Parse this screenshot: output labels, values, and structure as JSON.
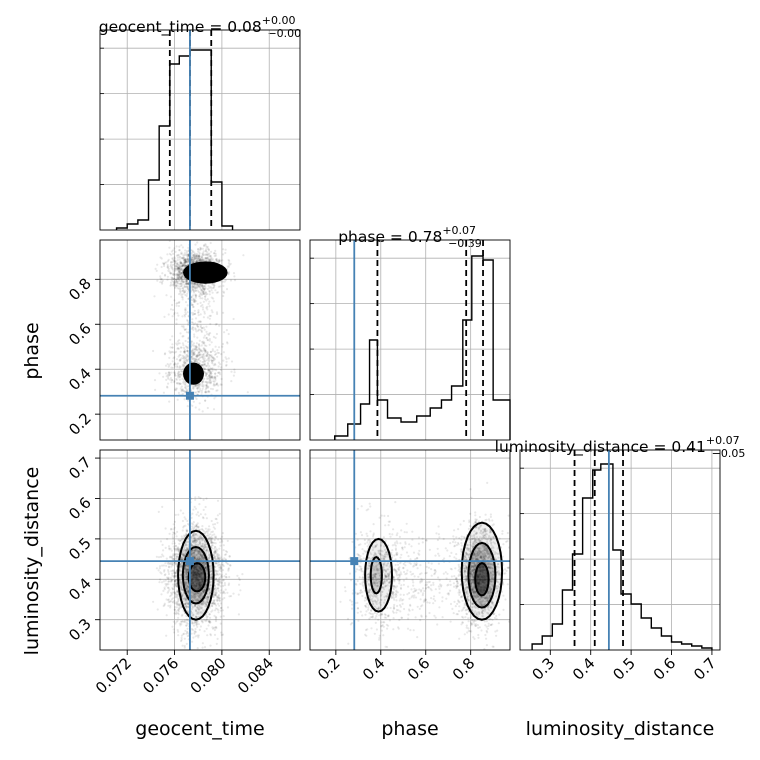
{
  "chart_data": {
    "type": "corner",
    "parameters": [
      "geocent_time",
      "phase",
      "luminosity_distance"
    ],
    "titles": {
      "geocent_time": {
        "param": "geocent_time",
        "median": "0.08",
        "plus": "+0.00",
        "minus": "−0.00"
      },
      "phase": {
        "param": "phase",
        "median": "0.78",
        "plus": "+0.07",
        "minus": "−0.39"
      },
      "luminosity_distance": {
        "param": "luminosity_distance",
        "median": "0.41",
        "plus": "+0.07",
        "minus": "−0.05"
      }
    },
    "ranges": {
      "geocent_time": [
        0.0697,
        0.0866
      ],
      "phase": [
        0.085,
        0.975
      ],
      "luminosity_distance": [
        0.225,
        0.72
      ]
    },
    "ticks": {
      "geocent_time": [
        "0.072",
        "0.076",
        "0.080",
        "0.084"
      ],
      "phase": [
        "0.2",
        "0.4",
        "0.6",
        "0.8"
      ],
      "luminosity_distance": [
        "0.3",
        "0.4",
        "0.5",
        "0.6",
        "0.7"
      ]
    },
    "tick_values": {
      "geocent_time": [
        0.072,
        0.076,
        0.08,
        0.084
      ],
      "phase": [
        0.2,
        0.4,
        0.6,
        0.8
      ],
      "luminosity_distance": [
        0.3,
        0.4,
        0.5,
        0.6,
        0.7
      ]
    },
    "truths": {
      "geocent_time": 0.0773,
      "phase": 0.282,
      "luminosity_distance": 0.445
    },
    "quantiles": {
      "geocent_time": [
        0.0756,
        0.0773,
        0.0791
      ],
      "phase": [
        0.385,
        0.78,
        0.855
      ],
      "luminosity_distance": [
        0.36,
        0.41,
        0.48
      ]
    },
    "histograms": {
      "geocent_time": {
        "edges": [
          0.0711,
          0.072,
          0.0729,
          0.0738,
          0.0747,
          0.0756,
          0.0764,
          0.0773,
          0.0782,
          0.0791,
          0.08,
          0.0809
        ],
        "values": [
          0.01,
          0.03,
          0.05,
          0.25,
          0.52,
          0.83,
          0.87,
          0.9,
          0.9,
          0.24,
          0.02
        ]
      },
      "phase": {
        "edges": [
          0.195,
          0.253,
          0.31,
          0.35,
          0.385,
          0.43,
          0.49,
          0.56,
          0.62,
          0.67,
          0.715,
          0.765,
          0.805,
          0.855,
          0.9,
          0.975
        ],
        "values": [
          0.02,
          0.08,
          0.18,
          0.5,
          0.2,
          0.11,
          0.09,
          0.12,
          0.16,
          0.2,
          0.27,
          0.6,
          0.92,
          0.9,
          0.2
        ]
      },
      "luminosity_distance": {
        "edges": [
          0.255,
          0.28,
          0.305,
          0.33,
          0.355,
          0.38,
          0.405,
          0.425,
          0.455,
          0.475,
          0.5,
          0.525,
          0.55,
          0.575,
          0.6,
          0.625,
          0.65,
          0.675,
          0.7
        ],
        "values": [
          0.03,
          0.07,
          0.13,
          0.3,
          0.48,
          0.76,
          0.9,
          0.93,
          0.5,
          0.28,
          0.23,
          0.16,
          0.11,
          0.07,
          0.04,
          0.03,
          0.02,
          0.01
        ]
      }
    },
    "axis_labels": {
      "geocent_time": "geocent_time",
      "phase": "phase",
      "luminosity_distance": "luminosity_distance"
    },
    "grid": true
  },
  "colors": {
    "truth": "#4682b4",
    "hist": "#000000",
    "grid": "#b0b0b0",
    "density": "#000000"
  }
}
